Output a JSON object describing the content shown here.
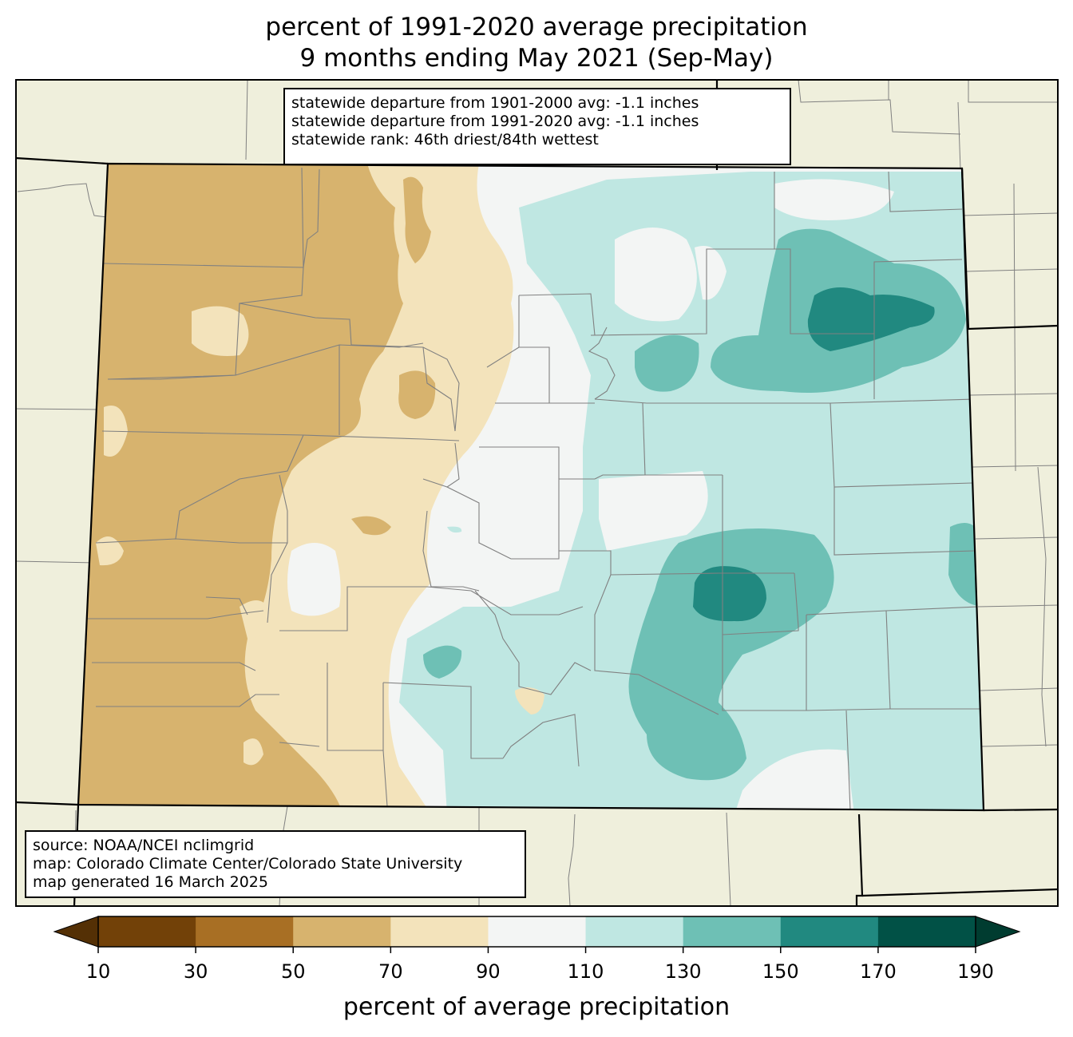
{
  "title": {
    "line1": "percent of 1991-2020 average precipitation",
    "line2": "9 months ending May 2021 (Sep-May)"
  },
  "stats_box": {
    "line1": "statewide departure from 1901-2000 avg: -1.1 inches",
    "line2": "statewide departure from 1991-2020 avg: -1.1 inches",
    "line3": "statewide rank: 46th driest/84th wettest"
  },
  "source_box": {
    "line1": "source: NOAA/NCEI nclimgrid",
    "line2": "map: Colorado Climate Center/Colorado State University",
    "line3": "map generated 16 March 2025"
  },
  "colorbar": {
    "label": "percent of average precipitation",
    "ticks": [
      "10",
      "30",
      "50",
      "70",
      "90",
      "110",
      "130",
      "150",
      "170",
      "190"
    ],
    "colors": [
      "#724108",
      "#a86f24",
      "#d7b36e",
      "#f3e3bb",
      "#f3f5f4",
      "#bfe7e2",
      "#6ec0b5",
      "#218980",
      "#015146"
    ],
    "under_color": "#543005",
    "over_color": "#003c30"
  },
  "colors": {
    "land_background": "#efefdc",
    "state_border": "#000000",
    "county_line": "#808080"
  }
}
